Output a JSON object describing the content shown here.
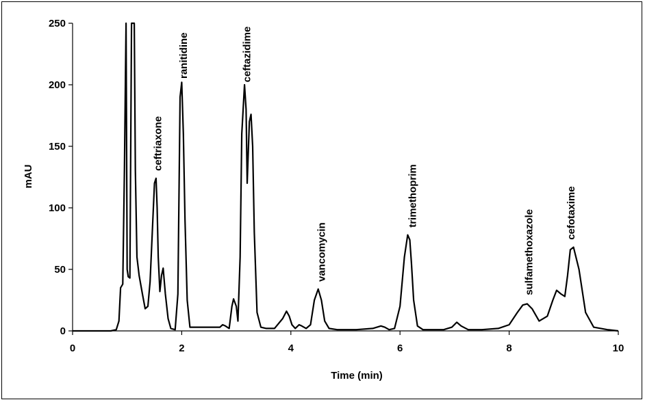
{
  "chart_data": {
    "type": "line",
    "xlabel": "Time (min)",
    "ylabel": "mAU",
    "xlim": [
      0,
      10
    ],
    "ylim": [
      0,
      250
    ],
    "x_ticks": [
      "0",
      "2",
      "4",
      "6",
      "8",
      "10"
    ],
    "y_ticks": [
      "0",
      "50",
      "100",
      "150",
      "200",
      "250"
    ],
    "grid": false,
    "legend": "none",
    "line_color": "#000000",
    "series": [
      {
        "x": [
          0.0,
          0.7,
          0.8,
          0.85,
          0.88,
          0.92,
          0.95,
          0.98,
          1.0,
          1.02,
          1.05,
          1.08,
          1.1,
          1.13,
          1.15,
          1.18,
          1.22,
          1.28,
          1.33,
          1.38,
          1.42,
          1.46,
          1.5,
          1.53,
          1.55,
          1.57,
          1.6,
          1.63,
          1.66,
          1.7,
          1.75,
          1.8,
          1.88,
          1.93,
          1.97,
          2.0,
          2.03,
          2.06,
          2.1,
          2.15,
          2.25,
          2.4,
          2.6,
          2.7,
          2.75,
          2.8,
          2.87,
          2.92,
          2.95,
          3.0,
          3.03,
          3.07,
          3.1,
          3.15,
          3.18,
          3.2,
          3.24,
          3.27,
          3.3,
          3.33,
          3.38,
          3.45,
          3.55,
          3.7,
          3.85,
          3.92,
          3.97,
          4.02,
          4.08,
          4.15,
          4.2,
          4.28,
          4.36,
          4.43,
          4.5,
          4.56,
          4.62,
          4.7,
          4.85,
          5.2,
          5.5,
          5.65,
          5.72,
          5.8,
          5.9,
          6.0,
          6.08,
          6.14,
          6.18,
          6.21,
          6.25,
          6.32,
          6.42,
          6.55,
          6.8,
          6.95,
          7.04,
          7.12,
          7.25,
          7.5,
          7.8,
          8.0,
          8.15,
          8.25,
          8.33,
          8.42,
          8.55,
          8.7,
          8.8,
          8.87,
          8.95,
          9.02,
          9.07,
          9.12,
          9.18,
          9.28,
          9.4,
          9.55,
          9.8,
          10.0
        ],
        "y": [
          0,
          0,
          1,
          8,
          35,
          38,
          130,
          250,
          50,
          44,
          43,
          250,
          250,
          250,
          130,
          60,
          45,
          30,
          18,
          20,
          40,
          80,
          120,
          124,
          100,
          60,
          32,
          45,
          51,
          30,
          10,
          2,
          1,
          30,
          190,
          202,
          160,
          90,
          25,
          3,
          3,
          3,
          3,
          3,
          5,
          4,
          2,
          20,
          26,
          20,
          8,
          60,
          160,
          200,
          180,
          120,
          170,
          176,
          150,
          80,
          15,
          3,
          2,
          2,
          10,
          16,
          12,
          5,
          2,
          5,
          4,
          2,
          5,
          25,
          34,
          25,
          8,
          2,
          1,
          1,
          2,
          4,
          3,
          1,
          2,
          20,
          60,
          78,
          74,
          55,
          25,
          4,
          1,
          1,
          1,
          3,
          7,
          4,
          1,
          1,
          2,
          5,
          15,
          21,
          22,
          18,
          8,
          12,
          25,
          33,
          30,
          28,
          45,
          66,
          68,
          50,
          15,
          3,
          1,
          0
        ]
      }
    ],
    "annotations": [
      {
        "text": "ceftriaxone",
        "x": 1.55,
        "y": 130
      },
      {
        "text": "ranitidine",
        "x": 2.02,
        "y": 205
      },
      {
        "text": "ceftazidime",
        "x": 3.18,
        "y": 202
      },
      {
        "text": "vancomycin",
        "x": 4.55,
        "y": 40
      },
      {
        "text": "trimethoprim",
        "x": 6.22,
        "y": 84
      },
      {
        "text": "sulfamethoxazole",
        "x": 8.35,
        "y": 29
      },
      {
        "text": "cefotaxime",
        "x": 9.12,
        "y": 74
      }
    ]
  }
}
